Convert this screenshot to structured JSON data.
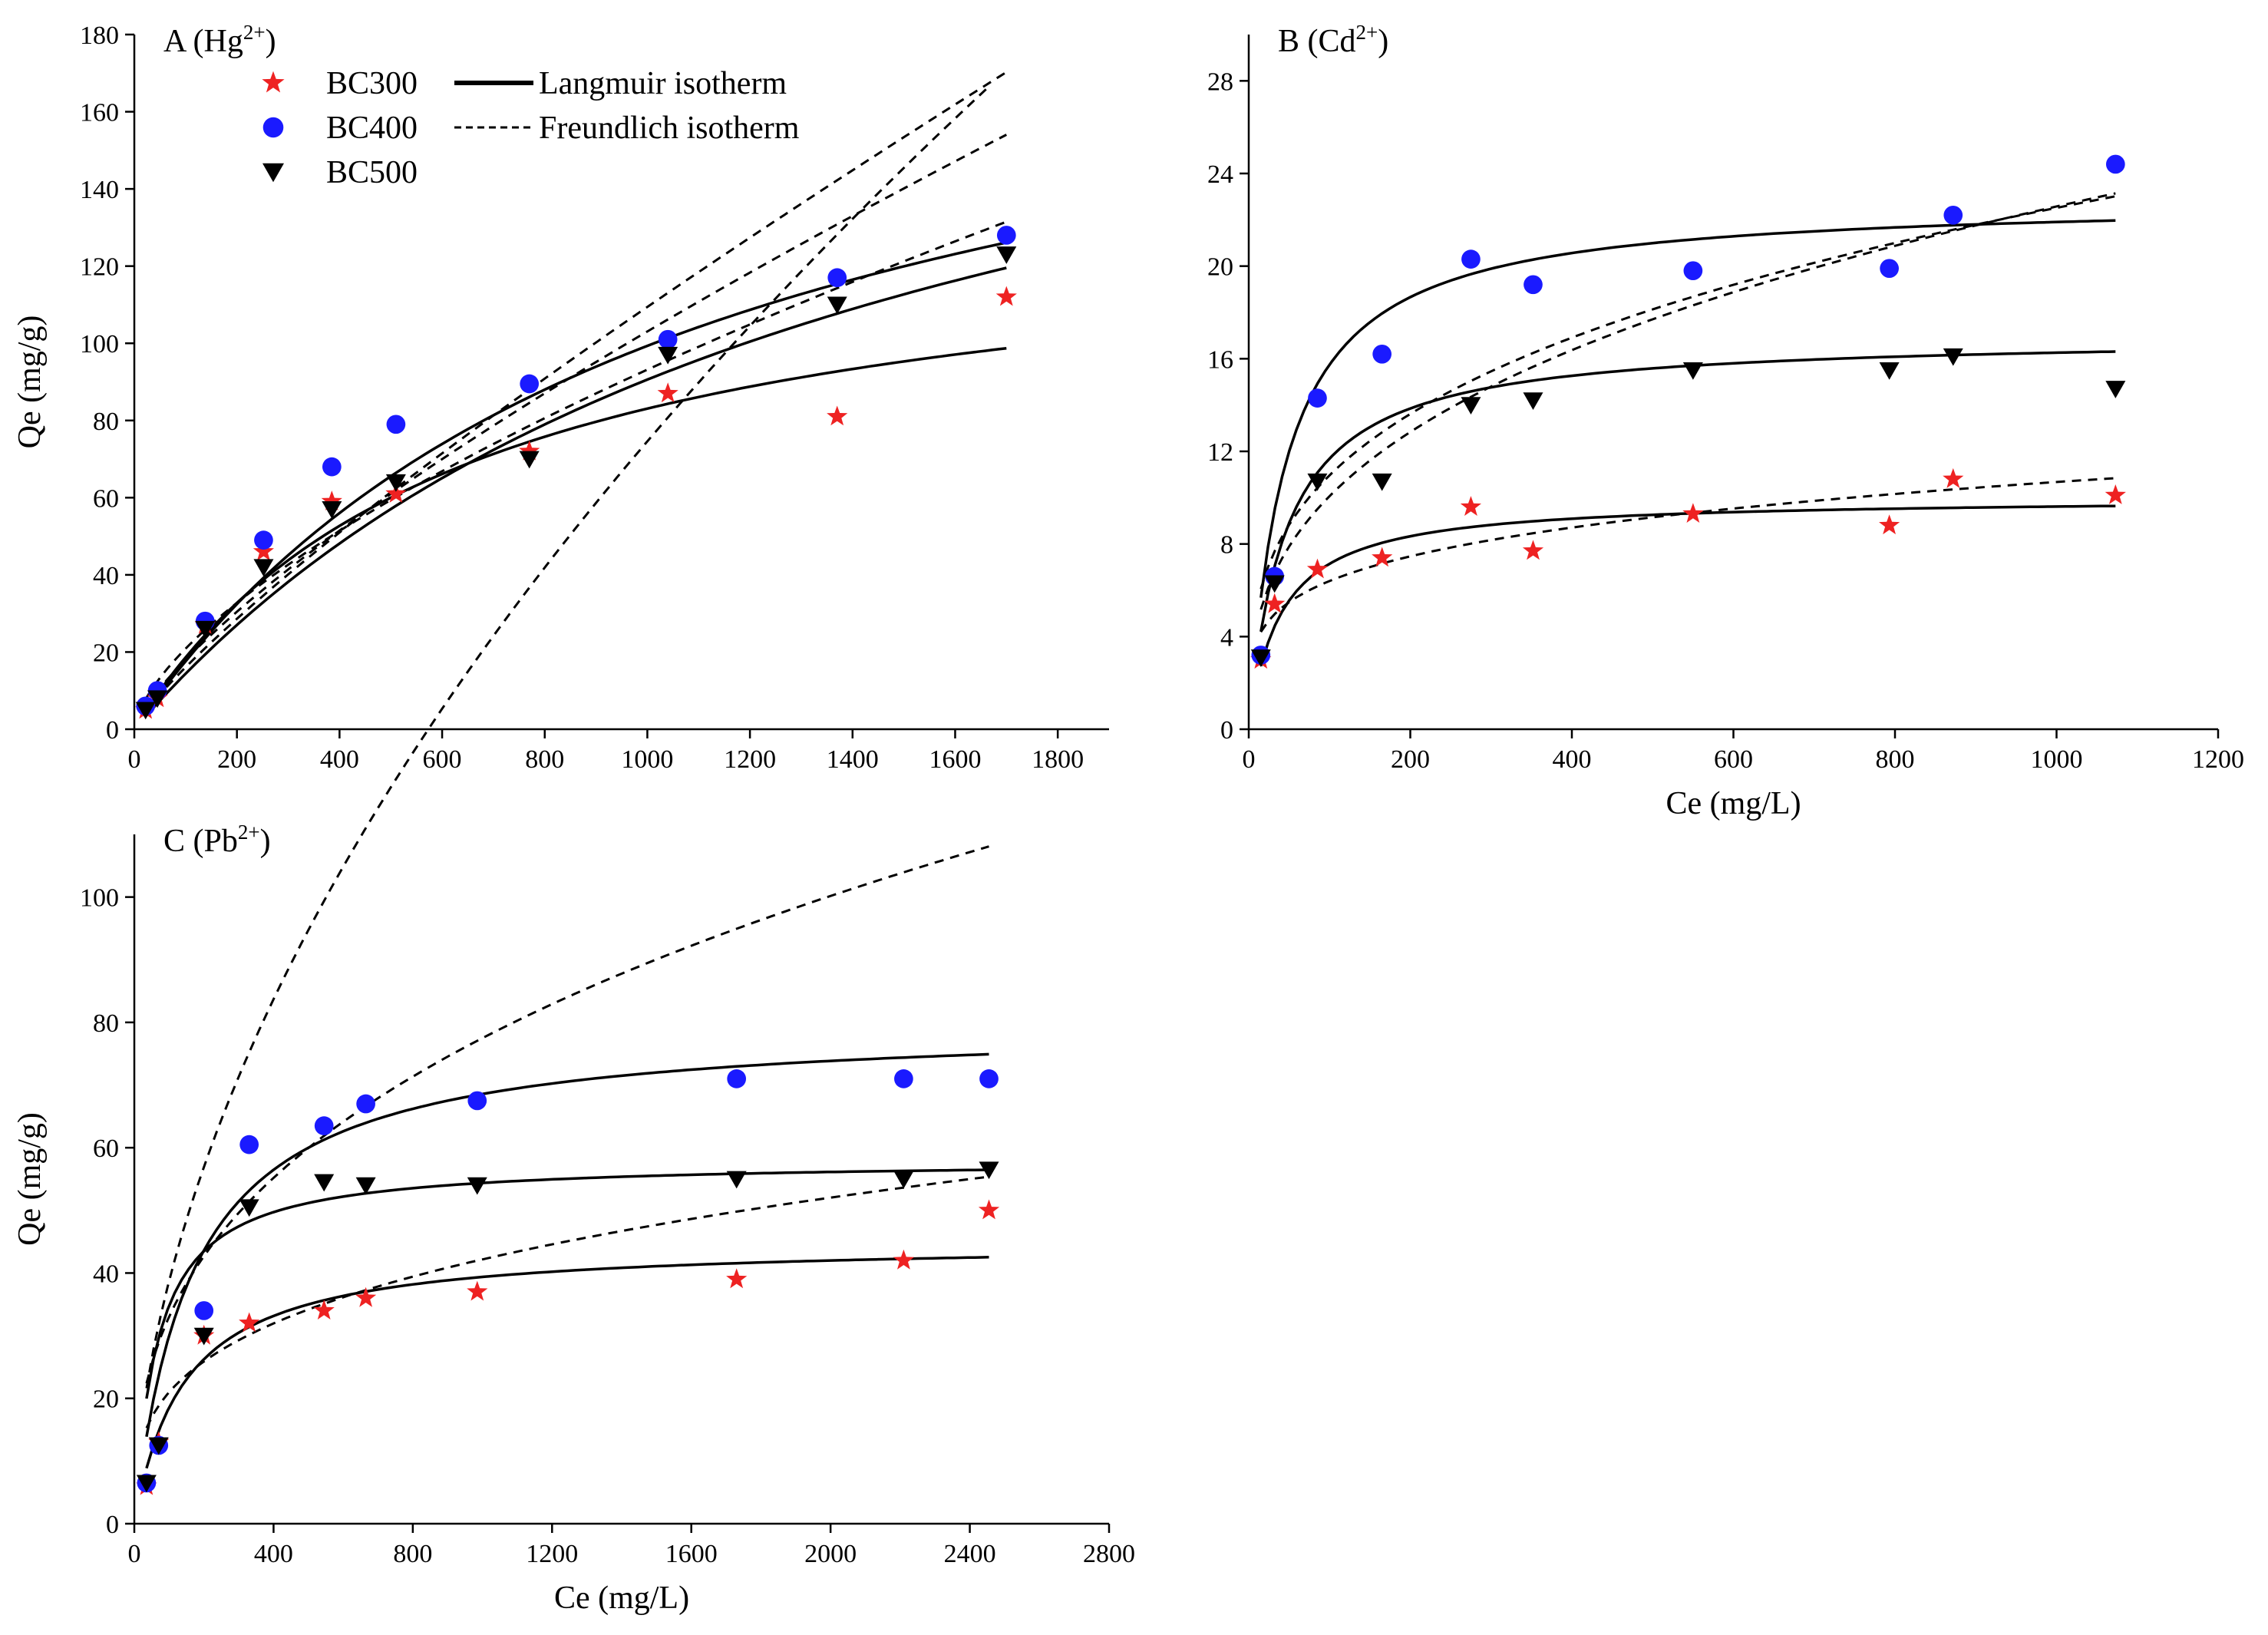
{
  "figure": {
    "legend": {
      "entries": [
        {
          "name": "BC300",
          "marker": "star",
          "color": "#ee2222"
        },
        {
          "name": "BC400",
          "marker": "circle",
          "color": "#1a1aff"
        },
        {
          "name": "BC500",
          "marker": "triangle-down",
          "color": "#000000"
        },
        {
          "name": "Langmuir isotherm",
          "line": "solid"
        },
        {
          "name": "Freundlich isotherm",
          "line": "dashed"
        }
      ]
    }
  },
  "chart_data": [
    {
      "id": "A",
      "type": "scatter",
      "panel_label": "A (Hg",
      "panel_sup": "2+",
      "panel_close": ")",
      "xlabel": "",
      "ylabel": "Qe (mg/g)",
      "xlim": [
        0,
        1900
      ],
      "ylim": [
        0,
        180
      ],
      "xticks": [
        0,
        200,
        400,
        600,
        800,
        1000,
        1200,
        1400,
        1600,
        1800
      ],
      "yticks": [
        0,
        20,
        40,
        60,
        80,
        100,
        120,
        140,
        160,
        180
      ],
      "legend": true,
      "series": [
        {
          "name": "BC300",
          "marker": "star",
          "color": "#ee2222",
          "x": [
            22,
            45,
            138,
            252,
            385,
            510,
            770,
            1040,
            1370,
            1700
          ],
          "y": [
            5,
            8,
            27,
            46,
            59,
            61,
            72,
            87,
            81,
            112
          ],
          "langmuir": {
            "qmax": 135,
            "K": 0.0016
          },
          "freundlich": {
            "K": 1.05,
            "n": 1.54
          }
        },
        {
          "name": "BC400",
          "marker": "circle",
          "color": "#1a1aff",
          "x": [
            22,
            45,
            138,
            252,
            385,
            510,
            770,
            1040,
            1370,
            1700
          ],
          "y": [
            6,
            10,
            28,
            49,
            68,
            79,
            89.5,
            101,
            117,
            128
          ],
          "langmuir": {
            "qmax": 205,
            "K": 0.00094
          },
          "freundlich": {
            "K": 0.346,
            "n": 1.2
          }
        },
        {
          "name": "BC500",
          "marker": "triangle-down",
          "color": "#000000",
          "x": [
            22,
            45,
            138,
            252,
            385,
            510,
            770,
            1040,
            1370,
            1700
          ],
          "y": [
            5,
            8,
            26,
            42,
            57,
            64,
            70,
            97,
            110,
            123
          ],
          "langmuir": {
            "qmax": 220,
            "K": 0.0007
          },
          "freundlich": {
            "K": 0.55,
            "n": 1.32
          }
        }
      ]
    },
    {
      "id": "B",
      "type": "scatter",
      "panel_label": "B (Cd",
      "panel_sup": "2+",
      "panel_close": ")",
      "xlabel": "Ce (mg/L)",
      "ylabel": "",
      "xlim": [
        0,
        1200
      ],
      "ylim": [
        0,
        30
      ],
      "xticks": [
        0,
        200,
        400,
        600,
        800,
        1000,
        1200
      ],
      "yticks": [
        0,
        4,
        8,
        12,
        16,
        20,
        24,
        28
      ],
      "legend": false,
      "series": [
        {
          "name": "BC300",
          "marker": "star",
          "color": "#ee2222",
          "x": [
            15,
            32,
            85,
            165,
            275,
            352,
            550,
            793,
            872,
            1073
          ],
          "y": [
            3,
            5.4,
            6.9,
            7.4,
            9.6,
            7.7,
            9.3,
            8.8,
            10.8,
            10.1
          ],
          "langmuir": {
            "qmax": 10,
            "K": 0.025
          },
          "freundlich": {
            "K": 2.3,
            "n": 4.5
          }
        },
        {
          "name": "BC400",
          "marker": "circle",
          "color": "#1a1aff",
          "x": [
            15,
            32,
            85,
            165,
            275,
            352,
            550,
            793,
            872,
            1073
          ],
          "y": [
            3.2,
            6.6,
            14.3,
            16.2,
            20.3,
            19.2,
            19.8,
            19.9,
            22.2,
            24.4
          ],
          "langmuir": {
            "qmax": 22.9,
            "K": 0.022
          },
          "freundlich": {
            "K": 2.0,
            "n": 2.85
          }
        },
        {
          "name": "BC500",
          "marker": "triangle-down",
          "color": "#000000",
          "x": [
            15,
            32,
            85,
            165,
            275,
            352,
            550,
            793,
            872,
            1073
          ],
          "y": [
            3.1,
            6.3,
            10.7,
            10.7,
            14,
            14.2,
            15.5,
            15.5,
            16.1,
            14.7
          ],
          "langmuir": {
            "qmax": 17,
            "K": 0.022
          },
          "freundlich": {
            "K": 2.6,
            "n": 3.2
          }
        }
      ]
    },
    {
      "id": "C",
      "type": "scatter",
      "panel_label": "C (Pb",
      "panel_sup": "2+",
      "panel_close": ")",
      "xlabel": "Ce (mg/L)",
      "ylabel": "Qe (mg/g)",
      "xlim": [
        0,
        2800
      ],
      "ylim": [
        0,
        110
      ],
      "xticks": [
        0,
        400,
        800,
        1200,
        1600,
        2000,
        2400,
        2800
      ],
      "yticks": [
        0,
        20,
        40,
        60,
        80,
        100
      ],
      "legend": false,
      "series": [
        {
          "name": "BC300",
          "marker": "star",
          "color": "#ee2222",
          "x": [
            35,
            70,
            200,
            330,
            545,
            665,
            985,
            1730,
            2210,
            2455
          ],
          "y": [
            6,
            13,
            30,
            32,
            34,
            36,
            37,
            39,
            42,
            50
          ],
          "langmuir": {
            "qmax": 45,
            "K": 0.007
          },
          "freundlich": {
            "K": 5.2,
            "n": 3.3
          }
        },
        {
          "name": "BC400",
          "marker": "circle",
          "color": "#1a1aff",
          "x": [
            35,
            70,
            200,
            330,
            545,
            665,
            985,
            1730,
            2210,
            2455
          ],
          "y": [
            6.5,
            12.5,
            34,
            60.5,
            63.5,
            67,
            67.5,
            71,
            71,
            71
          ],
          "langmuir": {
            "qmax": 80,
            "K": 0.006
          },
          "freundlich": {
            "K": 3.0,
            "n": 1.8
          }
        },
        {
          "name": "BC500",
          "marker": "triangle-down",
          "color": "#000000",
          "x": [
            35,
            70,
            200,
            330,
            545,
            665,
            985,
            1730,
            2210,
            2455
          ],
          "y": [
            6.5,
            12.5,
            30,
            50.5,
            54.5,
            54,
            54,
            55,
            55,
            56.5
          ],
          "langmuir": {
            "qmax": 58,
            "K": 0.015
          },
          "freundlich": {
            "K": 6.0,
            "n": 2.7
          }
        }
      ]
    }
  ]
}
